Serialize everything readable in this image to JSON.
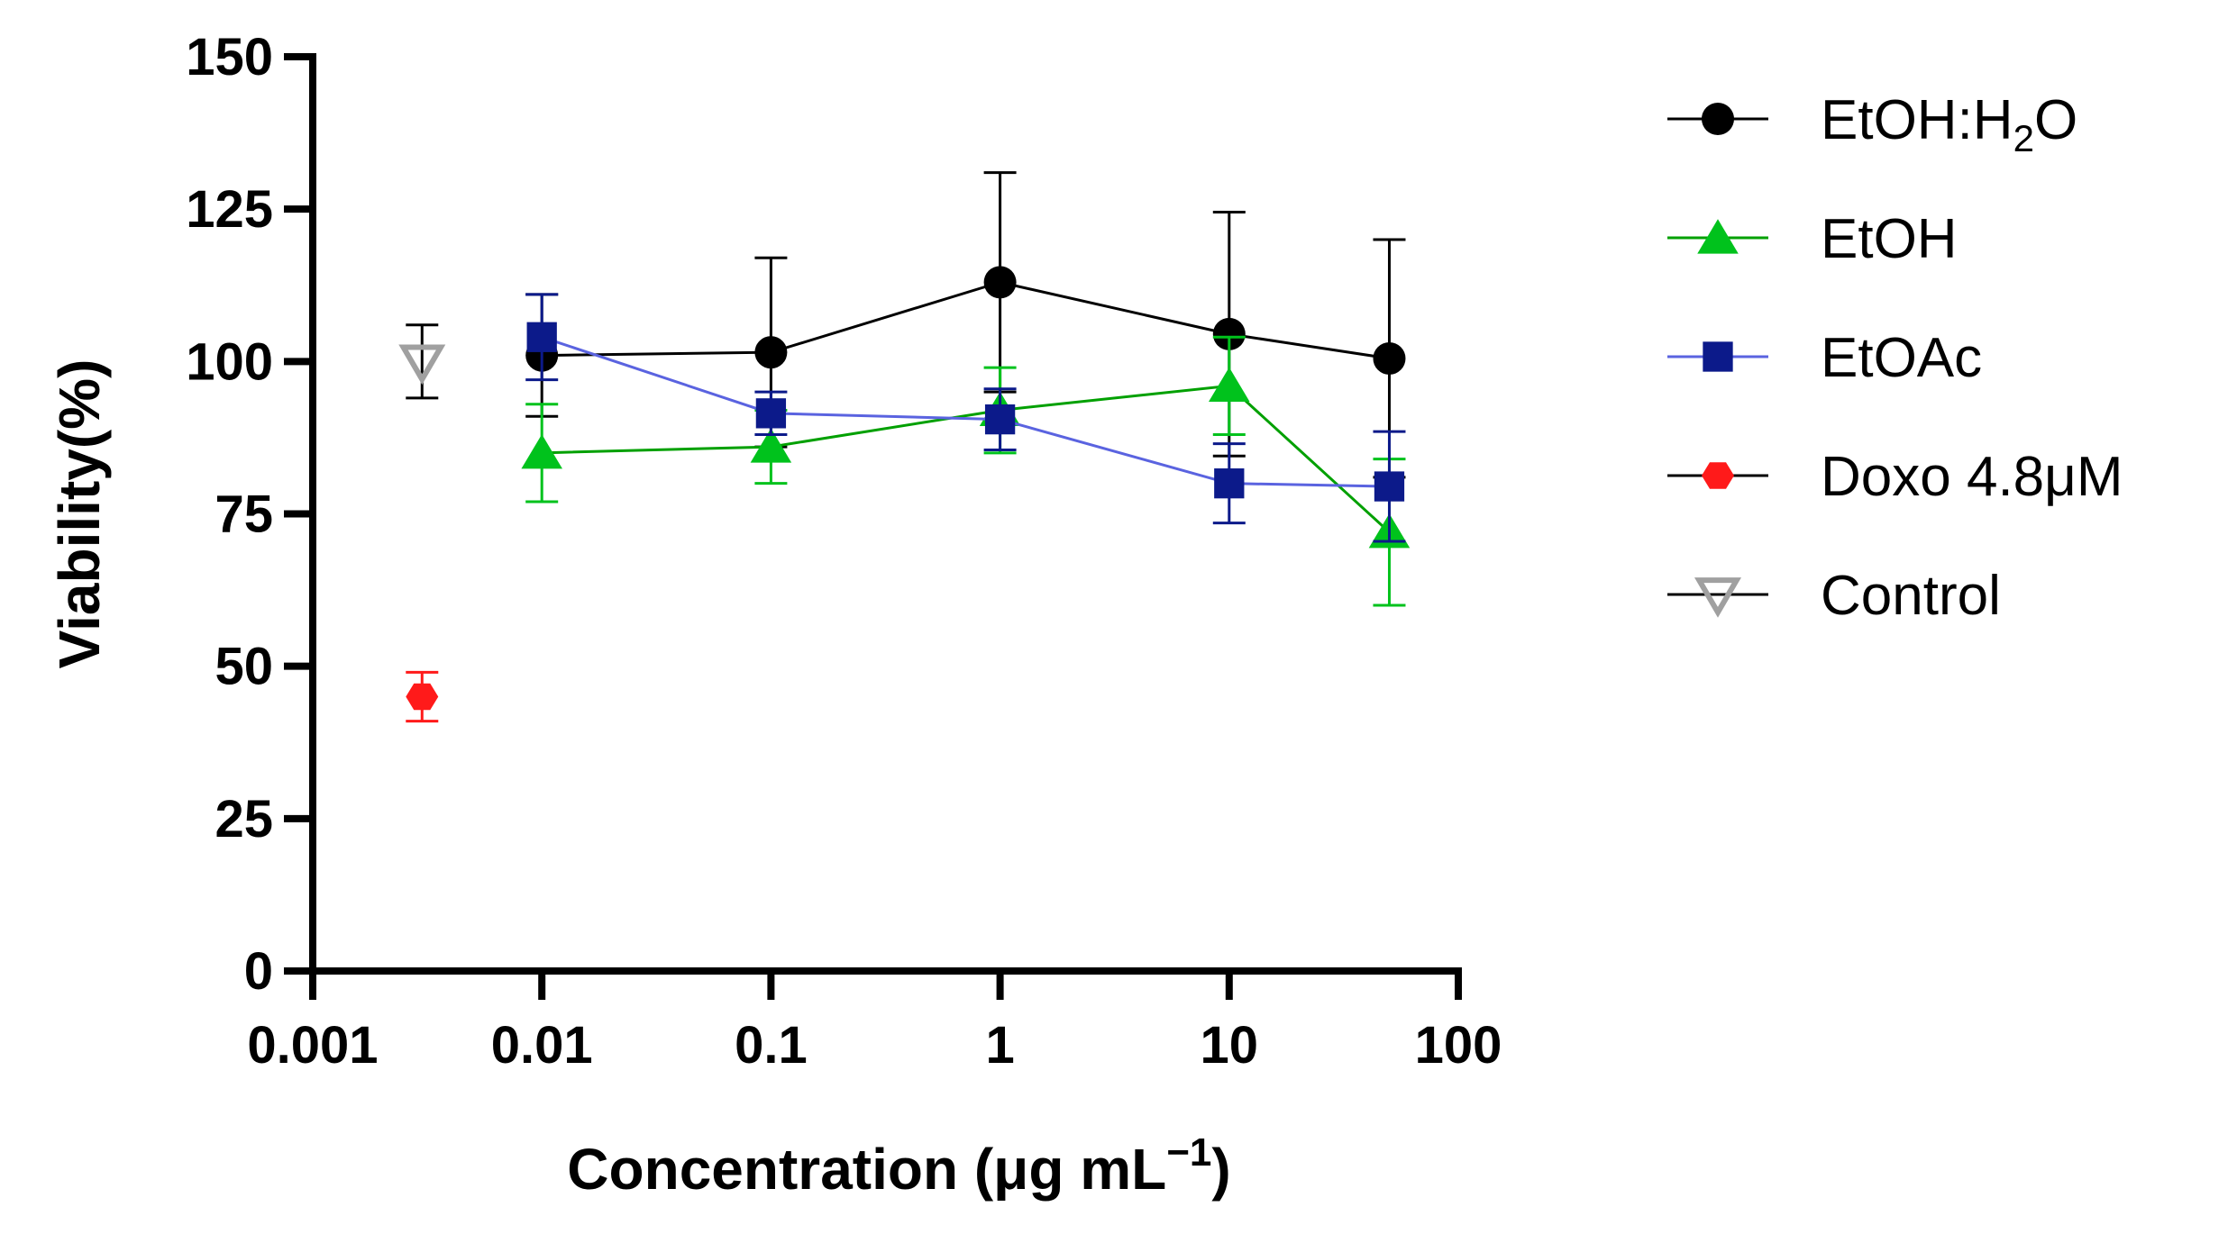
{
  "chart_data": {
    "type": "scatter",
    "xlabel": "Concentration (μg mL",
    "xlabel_sup": "−1",
    "xlabel_end": ")",
    "ylabel": "Viability(%)",
    "x_scale": "log",
    "xlim": [
      0.001,
      100
    ],
    "ylim": [
      0,
      150
    ],
    "x_ticks": [
      0.001,
      0.01,
      0.1,
      1,
      10,
      100
    ],
    "x_tick_labels": [
      "0.001",
      "0.01",
      "0.1",
      "1",
      "10",
      "100"
    ],
    "y_ticks": [
      0,
      25,
      50,
      75,
      100,
      125,
      150
    ],
    "y_tick_labels": [
      "0",
      "25",
      "50",
      "75",
      "100",
      "125",
      "150"
    ],
    "grid": false,
    "legend_position": "right",
    "series": [
      {
        "name": "EtOH:H2O",
        "legend_parts": [
          "EtOH:H",
          "2",
          "O"
        ],
        "marker": "circle",
        "color": "#000000",
        "line_color": "#000000",
        "connected": true,
        "points": [
          {
            "x": 0.01,
            "y": 101,
            "err": 10
          },
          {
            "x": 0.1,
            "y": 101.5,
            "err": 15.5
          },
          {
            "x": 1,
            "y": 113,
            "err": 18
          },
          {
            "x": 10,
            "y": 104.5,
            "err": 20
          },
          {
            "x": 50,
            "y": 100.5,
            "err": 19.5
          }
        ]
      },
      {
        "name": "EtOH",
        "legend_parts": [
          "EtOH"
        ],
        "marker": "triangle-up",
        "color": "#00c21c",
        "line_color": "#00a000",
        "connected": true,
        "points": [
          {
            "x": 0.01,
            "y": 85,
            "err": 8
          },
          {
            "x": 0.1,
            "y": 86,
            "err": 6
          },
          {
            "x": 1,
            "y": 92,
            "err": 7
          },
          {
            "x": 10,
            "y": 96,
            "err": 8
          },
          {
            "x": 50,
            "y": 72,
            "err": 12
          }
        ]
      },
      {
        "name": "EtOAc",
        "legend_parts": [
          "EtOAc"
        ],
        "marker": "square",
        "color": "#0c1a8a",
        "line_color": "#5a63e0",
        "connected": true,
        "points": [
          {
            "x": 0.01,
            "y": 104,
            "err": 7
          },
          {
            "x": 0.1,
            "y": 91.5,
            "err": 3.5
          },
          {
            "x": 1,
            "y": 90.5,
            "err": 5
          },
          {
            "x": 10,
            "y": 80,
            "err": 6.5
          },
          {
            "x": 50,
            "y": 79.5,
            "err": 9
          }
        ]
      },
      {
        "name": "Doxo 4.8μM",
        "legend_parts": [
          "Doxo 4.8μM"
        ],
        "marker": "hexagon",
        "color": "#ff1a1a",
        "line_color": "#000000",
        "connected": false,
        "points": [
          {
            "x": 0.003,
            "y": 45,
            "err": 4
          }
        ]
      },
      {
        "name": "Control",
        "legend_parts": [
          "Control"
        ],
        "marker": "triangle-down-open",
        "color": "#a0a0a0",
        "line_color": "#000000",
        "connected": false,
        "points": [
          {
            "x": 0.003,
            "y": 100,
            "err": 6
          }
        ]
      }
    ]
  }
}
